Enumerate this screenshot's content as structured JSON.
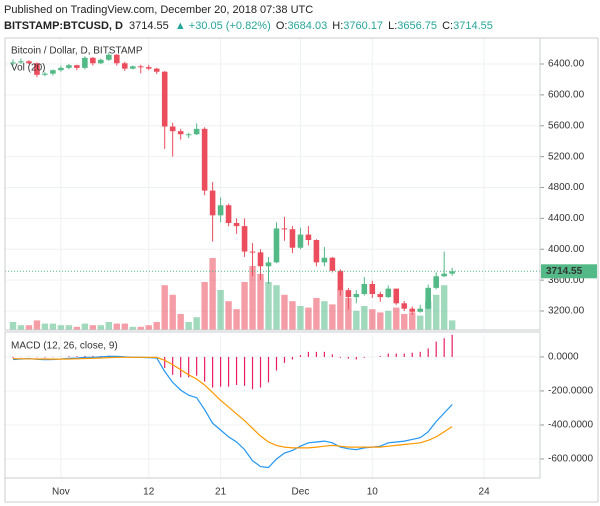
{
  "published": "Published on TradingView.com, December 20, 2018 07:38 UTC",
  "chart_data": [
    {
      "type": "candlestick",
      "symbol": "BITSTAMP:BTCUSD, D",
      "change": "▲ +30.05 (+0.82%)",
      "ohlc_labels": [
        "O:",
        "H:",
        "L:",
        "C:"
      ],
      "title": "Bitcoin / Dollar, D, BITSTAMP",
      "volume_label": "Vol (20)",
      "up_color": "#53b987",
      "down_color": "#eb4d5c",
      "last_price": 3714.55,
      "x": [
        "2018-10-26",
        "2018-10-27",
        "2018-10-28",
        "2018-10-29",
        "2018-10-30",
        "2018-10-31",
        "2018-11-01",
        "2018-11-02",
        "2018-11-03",
        "2018-11-04",
        "2018-11-05",
        "2018-11-06",
        "2018-11-07",
        "2018-11-08",
        "2018-11-09",
        "2018-11-10",
        "2018-11-11",
        "2018-11-12",
        "2018-11-13",
        "2018-11-14",
        "2018-11-15",
        "2018-11-16",
        "2018-11-17",
        "2018-11-18",
        "2018-11-19",
        "2018-11-20",
        "2018-11-21",
        "2018-11-22",
        "2018-11-23",
        "2018-11-24",
        "2018-11-25",
        "2018-11-26",
        "2018-11-27",
        "2018-11-28",
        "2018-11-29",
        "2018-11-30",
        "2018-12-01",
        "2018-12-02",
        "2018-12-03",
        "2018-12-04",
        "2018-12-05",
        "2018-12-06",
        "2018-12-07",
        "2018-12-08",
        "2018-12-09",
        "2018-12-10",
        "2018-12-11",
        "2018-12-12",
        "2018-12-13",
        "2018-12-14",
        "2018-12-15",
        "2018-12-16",
        "2018-12-17",
        "2018-12-18",
        "2018-12-19",
        "2018-12-20"
      ],
      "open": [
        6410,
        6420,
        6435,
        6410,
        6260,
        6275,
        6320,
        6350,
        6385,
        6350,
        6480,
        6410,
        6455,
        6520,
        6410,
        6340,
        6370,
        6360,
        6340,
        6300,
        5590,
        5530,
        5490,
        5490,
        5560,
        4760,
        4440,
        4570,
        4340,
        4300,
        3970,
        3960,
        3780,
        3830,
        4270,
        4260,
        4020,
        4190,
        4120,
        3830,
        3890,
        3720,
        3470,
        3380,
        3420,
        3550,
        3420,
        3380,
        3490,
        3300,
        3230,
        3190,
        3230,
        3500,
        3650,
        3684.03
      ],
      "high": [
        6460,
        6470,
        6450,
        6420,
        6300,
        6330,
        6380,
        6400,
        6390,
        6500,
        6490,
        6470,
        6550,
        6530,
        6430,
        6380,
        6390,
        6390,
        6350,
        6310,
        5640,
        5560,
        5510,
        5630,
        5580,
        4870,
        4670,
        4590,
        4400,
        4400,
        4080,
        4000,
        3900,
        4350,
        4420,
        4300,
        4280,
        4300,
        4130,
        4030,
        3900,
        3740,
        3500,
        3470,
        3640,
        3590,
        3450,
        3530,
        3490,
        3330,
        3260,
        3280,
        3540,
        3700,
        3970,
        3760.17
      ],
      "low": [
        6380,
        6400,
        6400,
        6230,
        6240,
        6250,
        6300,
        6330,
        6320,
        6330,
        6380,
        6400,
        6440,
        6380,
        6310,
        6330,
        6280,
        6320,
        6270,
        5300,
        5200,
        5420,
        5440,
        5480,
        4700,
        4100,
        4350,
        4300,
        4200,
        3900,
        3650,
        3600,
        3550,
        3820,
        4110,
        3950,
        4000,
        4050,
        3780,
        3780,
        3700,
        3400,
        3220,
        3300,
        3400,
        3370,
        3320,
        3370,
        3280,
        3200,
        3150,
        3180,
        3220,
        3480,
        3640,
        3656.75
      ],
      "close": [
        6420,
        6435,
        6410,
        6260,
        6275,
        6320,
        6350,
        6385,
        6350,
        6480,
        6410,
        6455,
        6520,
        6410,
        6340,
        6370,
        6360,
        6340,
        6300,
        5590,
        5530,
        5490,
        5490,
        5560,
        4760,
        4440,
        4570,
        4340,
        4300,
        3970,
        3960,
        3780,
        3830,
        4270,
        4260,
        4020,
        4190,
        4120,
        3830,
        3890,
        3720,
        3470,
        3380,
        3420,
        3550,
        3420,
        3380,
        3490,
        3300,
        3230,
        3190,
        3230,
        3500,
        3650,
        3684.03,
        3714.55
      ],
      "volume": [
        5,
        3,
        3,
        6,
        4,
        4,
        3,
        3,
        2,
        4,
        3,
        3,
        5,
        4,
        4,
        2,
        2,
        3,
        5,
        28,
        22,
        10,
        5,
        8,
        30,
        45,
        25,
        18,
        13,
        30,
        40,
        35,
        30,
        28,
        22,
        18,
        15,
        14,
        20,
        18,
        16,
        25,
        20,
        12,
        15,
        13,
        11,
        12,
        14,
        10,
        11,
        9,
        18,
        22,
        28,
        6
      ],
      "xlim": [
        "2018-10-25",
        "2018-12-31"
      ],
      "xticks": [
        {
          "value": "2018-11-01",
          "label": "Nov"
        },
        {
          "value": "2018-11-12",
          "label": "12"
        },
        {
          "value": "2018-11-21",
          "label": "21"
        },
        {
          "value": "2018-12-01",
          "label": "Dec"
        },
        {
          "value": "2018-12-10",
          "label": "10"
        },
        {
          "value": "2018-12-24",
          "label": "24"
        }
      ],
      "ylim": [
        2954,
        6737
      ],
      "yticks": [
        {
          "value": 3200,
          "label": "3200.00"
        },
        {
          "value": 3600,
          "label": "3600.00"
        },
        {
          "value": 4000,
          "label": "4000.00"
        },
        {
          "value": 4400,
          "label": "4400.00"
        },
        {
          "value": 4800,
          "label": "4800.00"
        },
        {
          "value": 5200,
          "label": "5200.00"
        },
        {
          "value": 5600,
          "label": "5600.00"
        },
        {
          "value": 6000,
          "label": "6000.00"
        },
        {
          "value": 6400,
          "label": "6400.00"
        }
      ],
      "grid": true
    },
    {
      "type": "line",
      "title": "MACD (12, 26, close, 9)",
      "series": [
        {
          "color": "#2196f3",
          "values": [
            -15,
            -12,
            -10,
            -14,
            -16,
            -15,
            -12,
            -8,
            -7,
            -3,
            -2,
            0,
            4,
            3,
            0,
            -2,
            -3,
            -4,
            -6,
            -85,
            -150,
            -195,
            -225,
            -240,
            -310,
            -390,
            -430,
            -470,
            -500,
            -545,
            -610,
            -645,
            -650,
            -600,
            -565,
            -550,
            -525,
            -505,
            -500,
            -495,
            -505,
            -530,
            -540,
            -545,
            -535,
            -530,
            -525,
            -505,
            -500,
            -495,
            -485,
            -475,
            -440,
            -380,
            -330,
            -280
          ]
        },
        {
          "color": "#ff9800",
          "values": [
            -10,
            -11,
            -11,
            -12,
            -12,
            -13,
            -13,
            -12,
            -11,
            -9,
            -8,
            -6,
            -4,
            -2,
            -2,
            -2,
            -2,
            -2,
            -3,
            -20,
            -45,
            -75,
            -105,
            -130,
            -165,
            -210,
            -255,
            -295,
            -335,
            -375,
            -420,
            -465,
            -500,
            -520,
            -530,
            -535,
            -535,
            -535,
            -530,
            -525,
            -520,
            -525,
            -530,
            -530,
            -530,
            -530,
            -530,
            -525,
            -520,
            -515,
            -510,
            -505,
            -490,
            -470,
            -440,
            -410
          ]
        }
      ],
      "histogram": {
        "color": "#e91e63",
        "values": [
          -5,
          -1,
          1,
          -2,
          -4,
          -2,
          1,
          4,
          4,
          6,
          6,
          6,
          8,
          5,
          2,
          0,
          -1,
          -2,
          -3,
          -65,
          -105,
          -120,
          -120,
          -110,
          -145,
          -180,
          -175,
          -175,
          -165,
          -170,
          -190,
          -180,
          -150,
          -80,
          -35,
          -15,
          10,
          30,
          30,
          30,
          15,
          -5,
          -10,
          -15,
          -5,
          0,
          5,
          20,
          20,
          20,
          25,
          30,
          50,
          90,
          110,
          130
        ]
      },
      "ylim": [
        -712,
        129
      ],
      "yticks": [
        {
          "value": -600,
          "label": "-600.0000"
        },
        {
          "value": -400,
          "label": "-400.0000"
        },
        {
          "value": -200,
          "label": "-200.0000"
        },
        {
          "value": 0,
          "label": "0.0000"
        }
      ],
      "grid": true
    }
  ]
}
